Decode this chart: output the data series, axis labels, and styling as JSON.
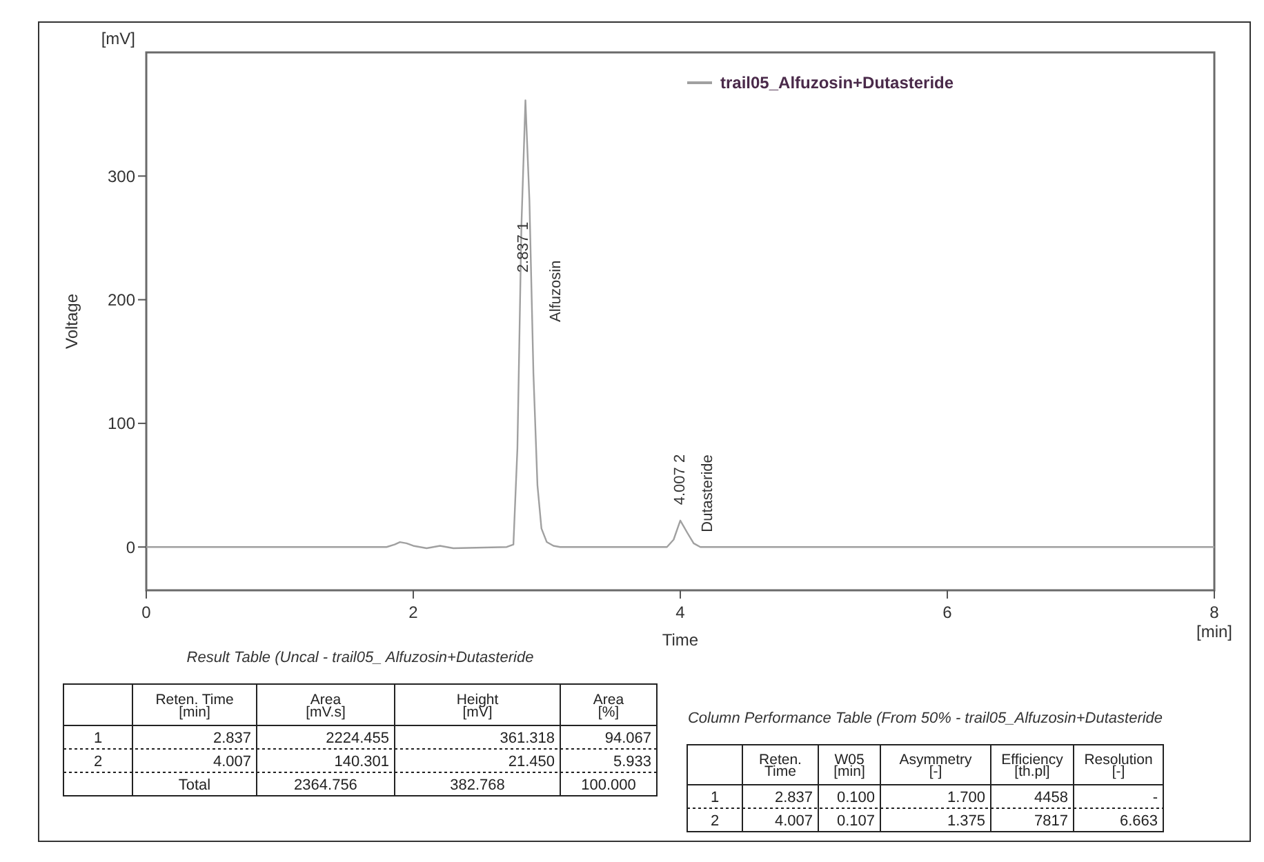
{
  "chart_data": [
    {
      "type": "line",
      "xlabel": "Time",
      "ylabel": "Voltage",
      "xlim": [
        0,
        8
      ],
      "xticks": [
        0,
        2,
        4,
        6,
        8
      ],
      "ylim": [
        -35,
        400
      ],
      "yticks": [
        0,
        100,
        200,
        300
      ],
      "grid": false,
      "legend": "top",
      "marker": "none",
      "line_style": "solid",
      "series": [
        {
          "name": "trail05_Alfuzosin+Dutasteride",
          "color": "#a0a0a0",
          "x": [
            0,
            1.8,
            1.86,
            1.9,
            1.95,
            2.0,
            2.1,
            2.2,
            2.3,
            2.7,
            2.75,
            2.78,
            2.81,
            2.84,
            2.87,
            2.9,
            2.93,
            2.96,
            3.0,
            3.05,
            3.1,
            3.9,
            3.95,
            4.0,
            4.05,
            4.1,
            4.15,
            8
          ],
          "values": [
            0,
            0,
            2,
            4,
            3,
            1,
            -1,
            1,
            -1,
            0,
            2,
            80,
            260,
            361.318,
            280,
            140,
            50,
            15,
            4,
            1,
            0,
            0,
            6,
            21.45,
            12,
            3,
            0,
            0
          ]
        }
      ],
      "annotations": [
        "[mV]",
        "[min]",
        "2.837   1",
        "Alfuzosin",
        "4.007   2",
        "Dutasteride"
      ]
    },
    {
      "type": "other",
      "title": "Result Table (Uncal - trail05_ Alfuzosin+Dutasteride",
      "annotations": [
        "Reten. Time",
        "Area",
        "Height",
        "Area",
        "[min]",
        "[mV.s]",
        "[mV]",
        "[%]",
        "1",
        "2.837",
        "2224.455",
        "361.318",
        "94.067",
        "2",
        "4.007",
        "140.301",
        "21.450",
        "5.933",
        "Total",
        "2364.756",
        "382.768",
        "100.000"
      ]
    },
    {
      "type": "other",
      "title": "Column Performance Table (From 50% - trail05_Alfuzosin+Dutasteride",
      "annotations": [
        "Reten.",
        "W05",
        "Asymmetry",
        "Efficiency",
        "Resolution",
        "Time",
        "[min]",
        "[-]",
        "[th.pl]",
        "[-]",
        "1",
        "2.837",
        "0.100",
        "1.700",
        "4458",
        "-",
        "2",
        "4.007",
        "0.107",
        "1.375",
        "7817",
        "6.663"
      ]
    }
  ]
}
